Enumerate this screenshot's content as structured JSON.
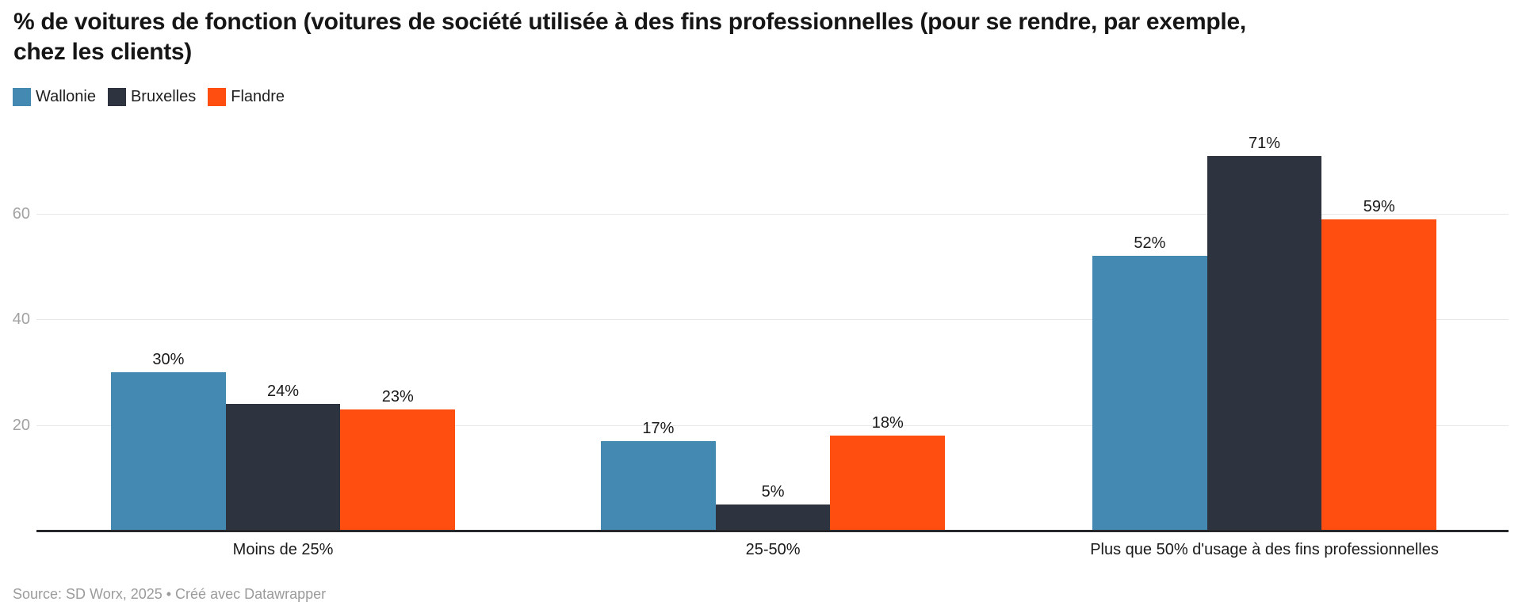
{
  "header": {
    "title": "% de voitures de fonction (voitures de société utilisée à des fins professionnelles (pour se rendre, par exemple, chez les clients)"
  },
  "chart_data": {
    "type": "bar",
    "title": "% de voitures de fonction (voitures de société utilisée à des fins professionnelles (pour se rendre, par exemple, chez les clients)",
    "categories": [
      "Moins de 25%",
      "25-50%",
      "Plus que 50% d'usage à des fins professionnelles"
    ],
    "series": [
      {
        "name": "Wallonie",
        "color": "#4489b2",
        "values": [
          30,
          17,
          52
        ]
      },
      {
        "name": "Bruxelles",
        "color": "#2d3440",
        "values": [
          24,
          5,
          71
        ]
      },
      {
        "name": "Flandre",
        "color": "#ff4e0f",
        "values": [
          23,
          18,
          59
        ]
      }
    ],
    "value_suffix": "%",
    "y_ticks": [
      20,
      40,
      60
    ],
    "ylim": [
      0,
      75
    ],
    "grid": true,
    "legend_position": "top-left",
    "value_labels_shown": true
  },
  "footer": {
    "text": "Source: SD Worx, 2025 • Créé avec Datawrapper"
  }
}
